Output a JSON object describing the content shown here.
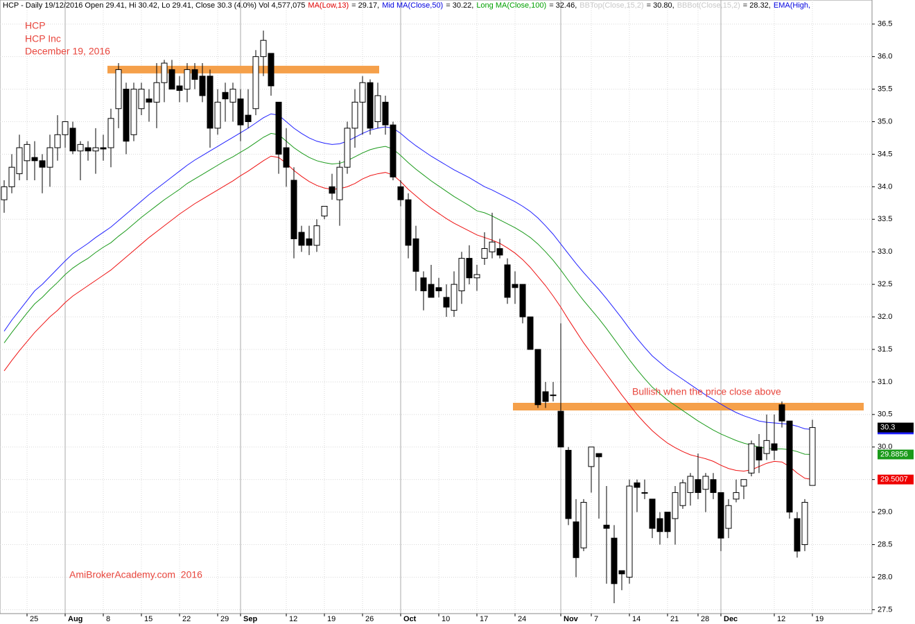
{
  "chart_data": {
    "type": "candlestick",
    "header": [
      {
        "text": "HCP - Daily 19/12/2016 Open 29.41, Hi 30.42, Lo 29.41, Close 30.3 (4.0%) Vol 4,577,075",
        "color": "#000000"
      },
      {
        "text": "MA(Low,13)",
        "color": "#e00000"
      },
      {
        "text": "= 29.17,",
        "color": "#000000"
      },
      {
        "text": "Mid MA(Close,50)",
        "color": "#0000e0"
      },
      {
        "text": "= 30.22,",
        "color": "#000000"
      },
      {
        "text": "Long MA(Close,100)",
        "color": "#00a000"
      },
      {
        "text": "= 32.46,",
        "color": "#000000"
      },
      {
        "text": "BBTop(Close,15,2)",
        "color": "#c8c8c8"
      },
      {
        "text": "= 30.80,",
        "color": "#000000"
      },
      {
        "text": "BBBot(Close,15,2)",
        "color": "#c8c8c8"
      },
      {
        "text": "= 28.32,",
        "color": "#000000"
      },
      {
        "text": "EMA(High,",
        "color": "#0000e0"
      }
    ],
    "symbol": "HCP",
    "company": "HCP Inc",
    "date": "December 19, 2016",
    "annotation": "Bullish when the price close above",
    "watermark": "AmiBrokerAcademy.com  2016",
    "levels": [
      {
        "value": 35.8,
        "color": "#f5a04a"
      },
      {
        "value": 30.62,
        "color": "#f5a04a"
      }
    ],
    "categories": [
      null,
      null,
      null,
      "25",
      null,
      null,
      null,
      null,
      "Aug",
      null,
      null,
      null,
      null,
      "8",
      null,
      null,
      null,
      null,
      "15",
      null,
      null,
      null,
      null,
      "22",
      null,
      null,
      null,
      null,
      "29",
      null,
      null,
      "Sep",
      null,
      null,
      null,
      null,
      null,
      "12",
      null,
      null,
      null,
      null,
      "19",
      null,
      null,
      null,
      null,
      "26",
      null,
      null,
      null,
      null,
      "Oct",
      null,
      null,
      null,
      null,
      "10",
      null,
      null,
      null,
      null,
      "17",
      null,
      null,
      null,
      null,
      "24",
      null,
      null,
      null,
      null,
      null,
      "Nov",
      null,
      null,
      null,
      "7",
      null,
      null,
      null,
      null,
      "14",
      null,
      null,
      null,
      null,
      "21",
      null,
      null,
      null,
      "28",
      null,
      null,
      "Dec",
      null,
      null,
      null,
      null,
      null,
      null,
      "12",
      null,
      null,
      null,
      null,
      "19"
    ],
    "open": [
      33.8,
      34.0,
      34.2,
      34.4,
      34.45,
      34.4,
      34.3,
      34.6,
      34.8,
      34.9,
      34.55,
      34.6,
      34.55,
      34.6,
      34.6,
      35.2,
      35.5,
      34.8,
      35.2,
      35.35,
      35.3,
      35.6,
      35.8,
      35.55,
      35.5,
      35.8,
      35.7,
      35.7,
      34.9,
      35.45,
      35.3,
      35.35,
      35.1,
      35.2,
      36.0,
      36.05,
      35.3,
      34.6,
      34.1,
      33.3,
      33.2,
      33.1,
      33.55,
      34.0,
      33.8,
      34.3,
      34.9,
      35.3,
      35.6,
      35.0,
      35.3,
      34.95,
      34.0,
      33.8,
      33.2,
      32.6,
      32.5,
      32.45,
      32.3,
      32.1,
      32.4,
      32.9,
      32.6,
      32.9,
      33.0,
      33.05,
      32.8,
      32.5,
      32.5,
      32.0,
      31.5,
      30.85,
      30.8,
      30.55,
      29.95,
      28.85,
      28.45,
      29.7,
      29.9,
      28.8,
      28.6,
      28.1,
      28.0,
      29.45,
      29.3,
      29.2,
      28.9,
      29.0,
      28.9,
      29.1,
      29.3,
      29.5,
      29.35,
      29.5,
      29.3,
      28.75,
      29.2,
      29.4,
      29.6,
      30.0,
      29.9,
      30.05,
      30.65,
      30.4,
      28.9,
      28.5,
      29.41
    ],
    "high": [
      34.1,
      34.5,
      34.8,
      34.7,
      34.7,
      34.5,
      34.8,
      35.1,
      35.0,
      35.0,
      34.7,
      34.7,
      34.9,
      34.8,
      35.2,
      35.9,
      35.6,
      35.6,
      35.6,
      35.5,
      35.9,
      35.95,
      35.95,
      35.7,
      35.9,
      35.9,
      35.9,
      35.8,
      35.5,
      35.6,
      35.6,
      35.5,
      35.5,
      36.1,
      36.4,
      36.05,
      35.3,
      34.9,
      34.3,
      33.4,
      33.4,
      33.5,
      33.7,
      34.2,
      34.4,
      35.0,
      35.5,
      35.7,
      35.65,
      35.6,
      35.4,
      35.0,
      34.1,
      33.9,
      33.4,
      32.7,
      32.8,
      32.6,
      32.5,
      32.7,
      33.0,
      33.1,
      32.8,
      33.3,
      33.6,
      33.2,
      32.9,
      32.7,
      32.5,
      32.0,
      31.5,
      31.0,
      31.0,
      31.9,
      30.0,
      29.2,
      29.2,
      30.0,
      29.9,
      29.4,
      28.8,
      28.1,
      29.5,
      29.5,
      29.5,
      29.2,
      29.0,
      29.0,
      29.4,
      29.5,
      29.6,
      29.9,
      29.6,
      29.6,
      29.3,
      29.2,
      29.5,
      29.5,
      30.1,
      30.2,
      30.5,
      30.5,
      30.7,
      30.4,
      29.0,
      29.2,
      30.42
    ],
    "low": [
      33.6,
      33.9,
      34.1,
      34.1,
      34.1,
      33.9,
      34.0,
      34.4,
      34.6,
      34.5,
      34.1,
      34.4,
      34.2,
      34.4,
      34.3,
      34.9,
      34.5,
      34.7,
      35.1,
      35.0,
      34.9,
      35.3,
      35.5,
      35.3,
      35.3,
      35.5,
      35.3,
      34.6,
      34.8,
      35.0,
      35.0,
      34.7,
      34.9,
      35.1,
      35.7,
      35.4,
      34.2,
      34.0,
      32.9,
      33.0,
      32.95,
      33.0,
      33.5,
      33.8,
      33.4,
      34.2,
      34.6,
      34.8,
      34.8,
      34.9,
      34.8,
      34.1,
      33.7,
      32.9,
      32.4,
      32.1,
      32.3,
      32.3,
      32.0,
      32.0,
      32.2,
      32.5,
      32.4,
      32.8,
      32.9,
      32.9,
      32.2,
      32.2,
      31.9,
      31.5,
      30.6,
      30.6,
      30.7,
      30.0,
      28.8,
      28.0,
      28.4,
      29.3,
      28.9,
      27.9,
      27.6,
      27.8,
      27.9,
      29.0,
      29.2,
      28.6,
      28.5,
      28.6,
      28.5,
      29.05,
      29.1,
      29.2,
      29.0,
      29.2,
      28.4,
      28.6,
      29.15,
      29.2,
      29.55,
      29.6,
      29.8,
      29.8,
      30.3,
      28.9,
      28.3,
      28.4,
      29.41
    ],
    "close": [
      34.0,
      34.3,
      34.6,
      34.65,
      34.4,
      34.3,
      34.6,
      34.8,
      35.0,
      34.55,
      34.65,
      34.55,
      34.6,
      34.58,
      35.05,
      35.8,
      34.7,
      35.5,
      35.5,
      35.3,
      35.6,
      35.9,
      35.5,
      35.48,
      35.8,
      35.65,
      35.4,
      34.9,
      35.3,
      35.35,
      35.5,
      34.95,
      35.0,
      36.0,
      36.25,
      35.55,
      34.5,
      34.3,
      33.2,
      33.1,
      33.1,
      33.4,
      33.7,
      33.9,
      34.3,
      34.9,
      35.3,
      35.6,
      34.9,
      35.4,
      34.95,
      34.15,
      33.8,
      33.1,
      32.7,
      32.4,
      32.3,
      32.4,
      32.15,
      32.5,
      32.9,
      32.6,
      32.65,
      33.05,
      33.15,
      32.95,
      32.3,
      32.45,
      32.0,
      31.5,
      30.65,
      30.7,
      30.8,
      30.0,
      28.9,
      28.3,
      29.15,
      30.0,
      29.85,
      28.75,
      27.9,
      28.05,
      29.4,
      29.38,
      29.3,
      28.75,
      28.7,
      28.7,
      29.3,
      29.45,
      29.55,
      29.3,
      29.55,
      29.3,
      28.6,
      29.1,
      29.3,
      29.5,
      30.05,
      29.8,
      30.1,
      29.95,
      30.4,
      29.0,
      28.4,
      29.15,
      30.3
    ],
    "lines": [
      {
        "color": "#2020ff",
        "tag_color": "#1c1cff",
        "values": [
          31.78,
          31.95,
          32.1,
          32.25,
          32.4,
          32.5,
          32.62,
          32.74,
          32.86,
          32.97,
          33.05,
          33.13,
          33.22,
          33.3,
          33.38,
          33.48,
          33.58,
          33.68,
          33.78,
          33.88,
          33.97,
          34.06,
          34.15,
          34.24,
          34.33,
          34.41,
          34.48,
          34.55,
          34.62,
          34.69,
          34.76,
          34.83,
          34.9,
          34.98,
          35.06,
          35.12,
          35.1,
          35.0,
          34.9,
          34.82,
          34.75,
          34.7,
          34.67,
          34.65,
          34.66,
          34.7,
          34.76,
          34.82,
          34.87,
          34.9,
          34.92,
          34.9,
          34.82,
          34.72,
          34.63,
          34.55,
          34.47,
          34.4,
          34.33,
          34.26,
          34.2,
          34.14,
          34.07,
          34.0,
          33.95,
          33.89,
          33.83,
          33.77,
          33.7,
          33.62,
          33.52,
          33.4,
          33.27,
          33.12,
          32.97,
          32.82,
          32.68,
          32.55,
          32.42,
          32.28,
          32.13,
          31.98,
          31.82,
          31.67,
          31.53,
          31.4,
          31.3,
          31.2,
          31.12,
          31.04,
          30.96,
          30.88,
          30.8,
          30.73,
          30.66,
          30.59,
          30.53,
          30.48,
          30.44,
          30.4,
          30.38,
          30.37,
          30.36,
          30.35,
          30.32,
          30.28,
          30.2706
        ]
      },
      {
        "color": "#1a9a1a",
        "tag_color": "#1a9a1a",
        "values": [
          31.6,
          31.76,
          31.91,
          32.06,
          32.2,
          32.3,
          32.42,
          32.53,
          32.65,
          32.75,
          32.83,
          32.9,
          32.99,
          33.07,
          33.14,
          33.24,
          33.33,
          33.43,
          33.53,
          33.62,
          33.71,
          33.8,
          33.88,
          33.96,
          34.05,
          34.12,
          34.19,
          34.26,
          34.33,
          34.4,
          34.46,
          34.53,
          34.6,
          34.68,
          34.76,
          34.82,
          34.8,
          34.7,
          34.6,
          34.52,
          34.45,
          34.4,
          34.37,
          34.35,
          34.36,
          34.4,
          34.46,
          34.52,
          34.57,
          34.6,
          34.62,
          34.58,
          34.48,
          34.37,
          34.27,
          34.18,
          34.09,
          34.01,
          33.93,
          33.85,
          33.78,
          33.71,
          33.63,
          33.6,
          33.55,
          33.49,
          33.43,
          33.37,
          33.3,
          33.22,
          33.12,
          33.0,
          32.87,
          32.72,
          32.56,
          32.4,
          32.25,
          32.11,
          31.97,
          31.82,
          31.66,
          31.5,
          31.34,
          31.19,
          31.05,
          30.92,
          30.82,
          30.72,
          30.64,
          30.56,
          30.48,
          30.4,
          30.33,
          30.26,
          30.2,
          30.15,
          30.1,
          30.06,
          30.03,
          30.0,
          29.98,
          29.97,
          29.97,
          29.96,
          29.93,
          29.89,
          29.8856
        ]
      },
      {
        "color": "#ee1111",
        "tag_color": "#ee0000",
        "values": [
          31.17,
          31.33,
          31.48,
          31.62,
          31.76,
          31.88,
          32.0,
          32.1,
          32.22,
          32.32,
          32.4,
          32.48,
          32.56,
          32.64,
          32.72,
          32.82,
          32.92,
          33.02,
          33.12,
          33.22,
          33.31,
          33.4,
          33.49,
          33.58,
          33.66,
          33.74,
          33.81,
          33.88,
          33.95,
          34.02,
          34.09,
          34.17,
          34.24,
          34.32,
          34.4,
          34.47,
          34.45,
          34.36,
          34.25,
          34.16,
          34.08,
          34.02,
          33.98,
          33.96,
          33.97,
          34.0,
          34.05,
          34.12,
          34.17,
          34.2,
          34.22,
          34.18,
          34.08,
          33.96,
          33.86,
          33.76,
          33.67,
          33.59,
          33.51,
          33.44,
          33.38,
          33.32,
          33.26,
          33.22,
          33.18,
          33.13,
          33.06,
          32.98,
          32.88,
          32.76,
          32.62,
          32.48,
          32.32,
          32.15,
          31.96,
          31.78,
          31.6,
          31.44,
          31.28,
          31.12,
          30.96,
          30.8,
          30.65,
          30.5,
          30.37,
          30.25,
          30.15,
          30.06,
          29.99,
          29.93,
          29.88,
          29.85,
          29.82,
          29.78,
          29.72,
          29.67,
          29.64,
          29.63,
          29.65,
          29.7,
          29.75,
          29.78,
          29.77,
          29.7,
          29.6,
          29.52,
          29.5007
        ]
      }
    ],
    "ylim": [
      27.44,
      36.87
    ],
    "yticks": [
      27.5,
      {
        "value": 28,
        "label": "28.0"
      },
      28.5,
      {
        "value": 29,
        "label": "29.0"
      },
      29.5,
      {
        "value": 30,
        "label": "30.0"
      },
      30.5,
      {
        "value": 31,
        "label": "31.0"
      },
      31.5,
      {
        "value": 32,
        "label": "32.0"
      },
      32.5,
      {
        "value": 33,
        "label": "33.0"
      },
      33.5,
      {
        "value": 34,
        "label": "34.0"
      },
      34.5,
      {
        "value": 35,
        "label": "35.0"
      },
      35.5,
      {
        "value": 36,
        "label": "36.0"
      },
      36.5
    ],
    "grid": true
  }
}
